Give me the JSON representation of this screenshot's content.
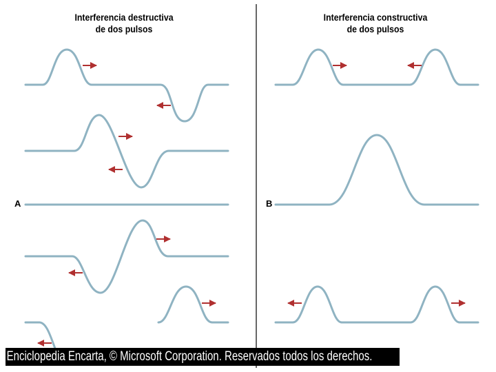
{
  "colors": {
    "wave": "#8fb3c2",
    "arrow": "#b03030",
    "divider": "#000000",
    "credit_background": "#000000",
    "credit_text": "#ffffff"
  },
  "left_panel": {
    "title_line1": "Interferencia destructiva",
    "title_line2": "de dos pulsos",
    "label": "A"
  },
  "right_panel": {
    "title_line1": "Interferencia constructiva",
    "title_line2": "de dos pulsos",
    "label": "B"
  },
  "credit": "Enciclopedia Encarta, © Microsoft Corporation. Reservados todos los derechos."
}
